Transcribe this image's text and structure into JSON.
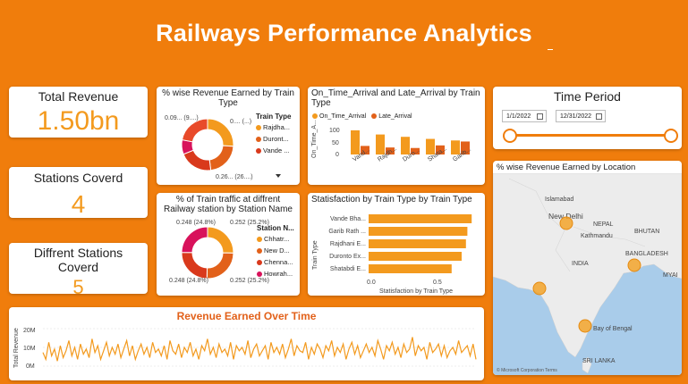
{
  "dashboard": {
    "title": "Railways Performance Analytics"
  },
  "kpis": {
    "total_revenue": {
      "label": "Total Revenue",
      "value": "1.50bn"
    },
    "stations_covered": {
      "label": "Stations Coverd",
      "value": "4"
    },
    "different_stations": {
      "label": "Diffrent Stations Coverd",
      "value": "5"
    }
  },
  "train_revenue_donut": {
    "title": "% wise Revenue Earned by Train Type",
    "legend_title": "Train Type",
    "legend": [
      "Rajdha...",
      "Duront...",
      "Vande ..."
    ],
    "labels": [
      "0.09... (9....)",
      "0.... (...)",
      "0.26... (26....)"
    ],
    "more_icon": "chevron-down-icon"
  },
  "station_traffic_donut": {
    "title": "% of Train traffic at diffrent Railway station by Station Name",
    "legend_title": "Station N...",
    "legend": [
      "Chhatr...",
      "New D...",
      "Chenna...",
      "Howrah..."
    ],
    "labels": {
      "tl": "0.248 (24.8%)",
      "tr": "0.252 (25.2%)",
      "bl": "0.248 (24.8%)",
      "br": "0.252 (25.2%)"
    }
  },
  "arrival_chart": {
    "title": "On_Time_Arrival and Late_Arrival by Train Type",
    "legend": [
      "On_Time_Arrival",
      "Late_Arrival"
    ],
    "ylabel": "On_Time_A...",
    "yticks": [
      "100",
      "50",
      "0"
    ]
  },
  "satisfaction_chart": {
    "title": "Statisfaction by Train Type by Train Type",
    "xlabel": "Statisfaction by Train Type",
    "ylabel": "Train Type",
    "xticks": [
      "0.0",
      "0.5"
    ]
  },
  "time_period": {
    "title": "Time Period",
    "start": "1/1/2022",
    "end": "12/31/2022"
  },
  "map": {
    "title": "% wise Revenue Earned by Location",
    "labels": [
      "Islamabad",
      "New Delhi",
      "NEPAL",
      "Kathmandu",
      "BHUTAN",
      "BANGLADESH",
      "INDIA",
      "MYAI",
      "Bay of Bengal",
      "SRI LANKA"
    ],
    "attribution": "© Microsoft Corporation  Terms"
  },
  "revenue_chart": {
    "title": "Revenue Earned Over Time",
    "ylabel": "Total Revenue",
    "yticks": [
      "20M",
      "10M",
      "0M"
    ]
  },
  "colors": {
    "orange": "#f39a1e",
    "dark_orange": "#e2611a",
    "red": "#d9391c",
    "magenta": "#d8125b",
    "background": "#f07d0c"
  },
  "chart_data": [
    {
      "type": "pie",
      "title": "% wise Revenue Earned by Train Type",
      "categories": [
        "Rajdhani Express",
        "Duronto Express",
        "Vande Bharat",
        "Garib Rath",
        "Shatabdi Express"
      ],
      "values": [
        0.26,
        0.22,
        0.21,
        0.09,
        0.22
      ]
    },
    {
      "type": "pie",
      "title": "% of Train traffic at diffrent Railway station by Station Name",
      "categories": [
        "Chhatrapati",
        "New Delhi",
        "Chennai",
        "Howrah"
      ],
      "values": [
        0.252,
        0.252,
        0.248,
        0.248
      ]
    },
    {
      "type": "bar",
      "title": "On_Time_Arrival and Late_Arrival by Train Type",
      "categories": [
        "Vand...",
        "Rajdh...",
        "Duro...",
        "Shata...",
        "Garib..."
      ],
      "series": [
        {
          "name": "On_Time_Arrival",
          "values": [
            93,
            77,
            68,
            60,
            54
          ]
        },
        {
          "name": "Late_Arrival",
          "values": [
            33,
            27,
            25,
            35,
            50
          ]
        }
      ],
      "ylim": [
        0,
        110
      ]
    },
    {
      "type": "bar",
      "title": "Statisfaction by Train Type by Train Type",
      "categories": [
        "Vande Bha...",
        "Garib Rath ...",
        "Rajdhani E...",
        "Duronto Ex...",
        "Shatabdi E..."
      ],
      "values": [
        0.72,
        0.69,
        0.68,
        0.65,
        0.58
      ],
      "xlim": [
        0,
        0.8
      ]
    },
    {
      "type": "line",
      "title": "Revenue Earned Over Time",
      "ylabel": "Total Revenue",
      "ylim": [
        0,
        22
      ],
      "values": [
        8,
        4,
        14,
        6,
        10,
        3,
        12,
        5,
        9,
        15,
        6,
        11,
        4,
        13,
        7,
        10,
        5,
        16,
        8,
        12,
        4,
        9,
        14,
        6,
        11,
        7,
        13,
        5,
        10,
        15,
        6,
        12,
        4,
        9,
        13,
        7,
        11,
        5,
        14,
        8,
        10,
        6,
        12,
        4,
        15,
        9,
        7,
        13,
        5,
        11,
        8,
        14,
        6,
        10,
        4,
        12,
        9,
        16,
        7,
        11,
        5,
        13,
        8,
        10,
        6,
        14,
        4,
        12,
        9,
        11,
        7,
        15,
        5,
        10,
        13,
        6,
        9,
        12,
        4,
        14,
        8,
        11,
        7,
        13,
        5,
        10,
        16,
        6,
        12,
        9,
        8,
        14,
        4,
        11,
        7,
        13,
        10,
        5,
        12,
        9,
        15,
        6,
        11,
        8,
        13,
        4,
        10,
        14,
        7,
        12,
        5,
        9,
        13,
        8,
        11,
        6,
        15,
        10,
        4,
        12,
        9,
        14,
        7,
        11,
        5,
        13,
        8,
        10,
        17,
        6,
        12,
        9,
        11,
        4,
        14,
        8,
        10,
        13,
        6,
        12,
        5,
        9,
        11,
        7,
        15,
        8,
        10,
        12,
        6,
        13,
        4
      ]
    }
  ]
}
